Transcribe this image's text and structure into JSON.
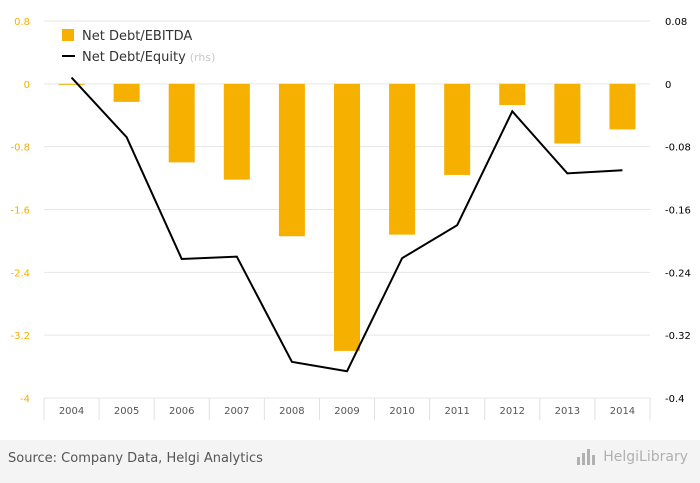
{
  "chart_data": {
    "type": "bar",
    "categories": [
      "2004",
      "2005",
      "2006",
      "2007",
      "2008",
      "2009",
      "2010",
      "2011",
      "2012",
      "2013",
      "2014"
    ],
    "series": [
      {
        "name": "Net Debt/EBITDA",
        "type": "bar",
        "axis": "left",
        "color": "#f5b000",
        "values": [
          -0.01,
          -0.23,
          -1.0,
          -1.22,
          -1.94,
          -3.4,
          -1.92,
          -1.16,
          -0.27,
          -0.76,
          -0.58
        ]
      },
      {
        "name": "Net Debt/Equity",
        "legend_suffix": "(rhs)",
        "type": "line",
        "axis": "right",
        "color": "#000000",
        "values": [
          0.008,
          -0.068,
          -0.223,
          -0.22,
          -0.354,
          -0.366,
          -0.222,
          -0.18,
          -0.035,
          -0.114,
          -0.11
        ]
      }
    ],
    "y_left": {
      "ylim": [
        -4,
        0.8
      ],
      "ticks": [
        "0.8",
        "0",
        "-0.8",
        "-1.6",
        "-2.4",
        "-3.2",
        "-4"
      ],
      "tick_values": [
        0.8,
        0,
        -0.8,
        -1.6,
        -2.4,
        -3.2,
        -4
      ],
      "tick_color": "#f5b000"
    },
    "y_right": {
      "ylim": [
        -0.4,
        0.08
      ],
      "ticks": [
        "0.08",
        "0",
        "-0.08",
        "-0.16",
        "-0.24",
        "-0.32",
        "-0.4"
      ],
      "tick_values": [
        0.08,
        0,
        -0.08,
        -0.16,
        -0.24,
        -0.32,
        -0.4
      ],
      "tick_color": "#000000"
    },
    "grid": "horizontal",
    "legend_position": "top-left"
  },
  "footer": {
    "source": "Source: Company Data, Helgi Analytics",
    "logo": "HelgiLibrary"
  }
}
